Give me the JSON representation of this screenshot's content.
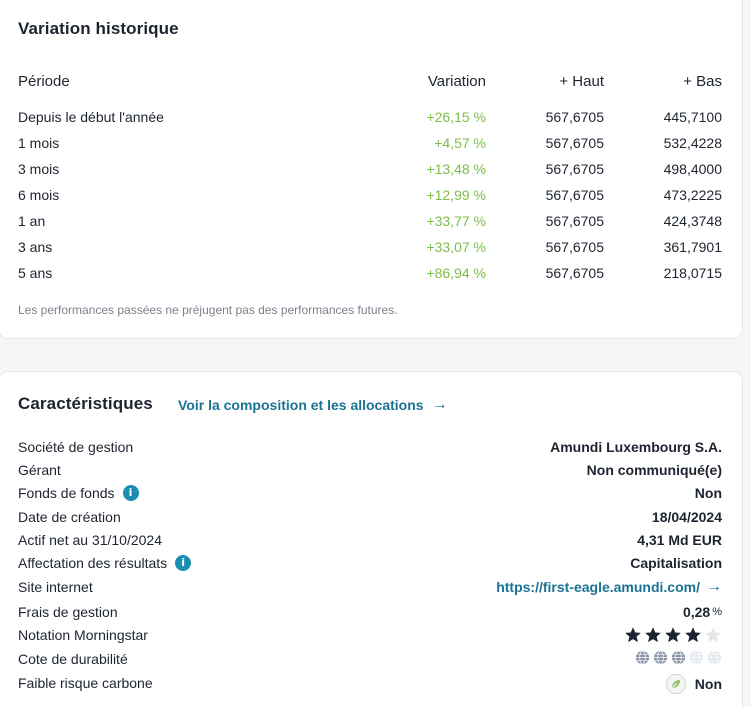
{
  "history": {
    "title": "Variation historique",
    "headers": {
      "period": "Période",
      "variation": "Variation",
      "high": "+ Haut",
      "low": "+ Bas"
    },
    "rows": [
      {
        "period": "Depuis le début l'année",
        "variation": "+26,15 %",
        "high": "567,6705",
        "low": "445,7100"
      },
      {
        "period": "1 mois",
        "variation": "+4,57 %",
        "high": "567,6705",
        "low": "532,4228"
      },
      {
        "period": "3 mois",
        "variation": "+13,48 %",
        "high": "567,6705",
        "low": "498,4000"
      },
      {
        "period": "6 mois",
        "variation": "+12,99 %",
        "high": "567,6705",
        "low": "473,2225"
      },
      {
        "period": "1 an",
        "variation": "+33,77 %",
        "high": "567,6705",
        "low": "424,3748"
      },
      {
        "period": "3 ans",
        "variation": "+33,07 %",
        "high": "567,6705",
        "low": "361,7901"
      },
      {
        "period": "5 ans",
        "variation": "+86,94 %",
        "high": "567,6705",
        "low": "218,0715"
      }
    ],
    "disclaimer": "Les performances passées ne préjugent pas des performances futures."
  },
  "characteristics": {
    "title": "Caractéristiques",
    "composition_link": "Voir la composition et les allocations",
    "management_company": {
      "label": "Société de gestion",
      "value": "Amundi Luxembourg S.A."
    },
    "manager": {
      "label": "Gérant",
      "value": "Non communiqué(e)"
    },
    "fund_of_funds": {
      "label": "Fonds de fonds",
      "value": "Non"
    },
    "creation_date": {
      "label": "Date de création",
      "value": "18/04/2024"
    },
    "net_assets": {
      "label": "Actif net au 31/10/2024",
      "value": "4,31 Md EUR"
    },
    "income_allocation": {
      "label": "Affectation des résultats",
      "value": "Capitalisation"
    },
    "website": {
      "label": "Site internet",
      "value": "https://first-eagle.amundi.com/"
    },
    "management_fees": {
      "label": "Frais de gestion",
      "value": "0,28",
      "unit": "%"
    },
    "morningstar_rating": {
      "label": "Notation Morningstar",
      "value": 4,
      "max": 5
    },
    "sustainability_rating": {
      "label": "Cote de durabilité",
      "value": 3,
      "max": 5
    },
    "low_carbon": {
      "label": "Faible risque carbone",
      "value": "Non"
    }
  },
  "colors": {
    "positive": "#7cbd4a",
    "link": "#1b7393",
    "info": "#1b8db3",
    "star_on": "#1d2430",
    "star_off": "#e3e5e8",
    "globe_on": "#8792a5",
    "globe_off": "#dfe6ee"
  },
  "icons": {
    "info": "info-icon",
    "arrow": "arrow-right-icon",
    "star": "star-icon",
    "globe": "globe-icon",
    "leaf": "leaf-icon"
  }
}
